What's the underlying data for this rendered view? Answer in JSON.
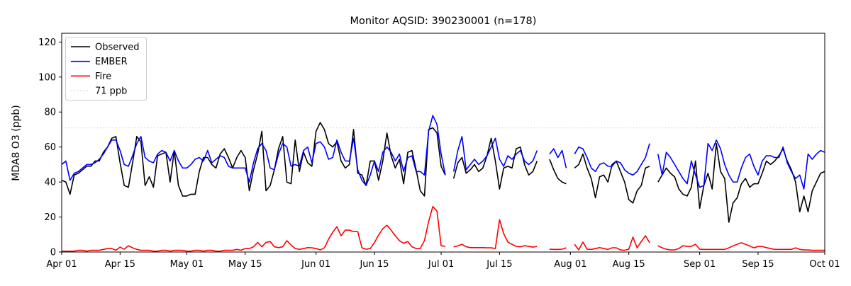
{
  "chart": {
    "title": "Monitor AQSID: 390230001 (n=178)",
    "ylabel": "MDA8 O3 (ppb)",
    "legend": [
      {
        "label": "Observed",
        "color": "#000000",
        "style": "solid"
      },
      {
        "label": "EMBER",
        "color": "#0000ff",
        "style": "solid"
      },
      {
        "label": "Fire",
        "color": "#ff0000",
        "style": "solid"
      },
      {
        "label": "71 ppb",
        "color": "#d9d9d9",
        "style": "dotted"
      }
    ]
  },
  "chart_data": {
    "type": "line",
    "title": "Monitor AQSID: 390230001 (n=178)",
    "xlabel": "",
    "ylabel": "MDA8 O3 (ppb)",
    "ylim": [
      0,
      125
    ],
    "yticks": [
      0,
      20,
      40,
      60,
      80,
      100,
      120
    ],
    "xlim_days": [
      0,
      183
    ],
    "xtick_labels": [
      "Apr 01",
      "Apr 15",
      "May 01",
      "May 15",
      "Jun 01",
      "Jun 15",
      "Jul 01",
      "Jul 15",
      "Aug 01",
      "Aug 15",
      "Sep 01",
      "Sep 15",
      "Oct 01"
    ],
    "xtick_days": [
      0,
      14,
      30,
      44,
      61,
      75,
      91,
      105,
      122,
      136,
      153,
      167,
      183
    ],
    "grid": false,
    "legend_position": "upper-left",
    "threshold": {
      "label": "71 ppb",
      "value": 71,
      "color": "#d9d9d9",
      "style": "dotted"
    },
    "series": [
      {
        "name": "Observed",
        "color": "#000000",
        "values": [
          41,
          40,
          33,
          44,
          45,
          47,
          49,
          49,
          52,
          52,
          57,
          60,
          65,
          66,
          51,
          38,
          37,
          51,
          66,
          63,
          38,
          43,
          37,
          55,
          56,
          57,
          40,
          58,
          38,
          32,
          32,
          33,
          33,
          46,
          54,
          54,
          50,
          48,
          56,
          59,
          54,
          48,
          54,
          58,
          54,
          35,
          47,
          56,
          69,
          35,
          38,
          47,
          59,
          66,
          40,
          39,
          64,
          46,
          57,
          51,
          49,
          69,
          74,
          70,
          62,
          60,
          63,
          52,
          48,
          50,
          70,
          45,
          44,
          38,
          52,
          52,
          41,
          52,
          68,
          55,
          48,
          53,
          39,
          57,
          58,
          47,
          35,
          32,
          70,
          71,
          68,
          49,
          44,
          null,
          42,
          51,
          54,
          45,
          47,
          50,
          46,
          48,
          55,
          65,
          52,
          36,
          48,
          49,
          48,
          59,
          60,
          50,
          44,
          46,
          52,
          null,
          null,
          53,
          47,
          42,
          40,
          39,
          null,
          48,
          50,
          56,
          48,
          42,
          31,
          43,
          44,
          40,
          50,
          52,
          46,
          40,
          30,
          28,
          35,
          38,
          48,
          49,
          null,
          40,
          44,
          48,
          45,
          43,
          36,
          33,
          32,
          37,
          52,
          25,
          38,
          45,
          36,
          62,
          46,
          42,
          17,
          28,
          31,
          39,
          42,
          37,
          39,
          39,
          45,
          52,
          50,
          52,
          55,
          59,
          52,
          47,
          40,
          23,
          32,
          23,
          35,
          40,
          45,
          46
        ]
      },
      {
        "name": "EMBER",
        "color": "#0000ff",
        "values": [
          50,
          52,
          41,
          45,
          46,
          48,
          50,
          50,
          51,
          53,
          56,
          60,
          64,
          64,
          58,
          50,
          49,
          55,
          62,
          66,
          54,
          52,
          51,
          56,
          58,
          57,
          52,
          58,
          52,
          48,
          48,
          50,
          53,
          54,
          52,
          58,
          51,
          53,
          55,
          54,
          49,
          48,
          48,
          48,
          48,
          40,
          51,
          59,
          62,
          58,
          48,
          47,
          56,
          62,
          60,
          49,
          50,
          49,
          58,
          60,
          51,
          62,
          63,
          60,
          53,
          54,
          64,
          57,
          52,
          52,
          65,
          47,
          41,
          38,
          44,
          52,
          46,
          57,
          60,
          57,
          52,
          56,
          46,
          54,
          55,
          46,
          46,
          44,
          69,
          78,
          73,
          56,
          44,
          null,
          46,
          58,
          66,
          47,
          50,
          53,
          50,
          52,
          55,
          60,
          65,
          53,
          49,
          55,
          53,
          56,
          58,
          52,
          50,
          52,
          58,
          null,
          null,
          56,
          59,
          54,
          58,
          48,
          null,
          56,
          60,
          59,
          54,
          48,
          46,
          50,
          51,
          49,
          49,
          52,
          51,
          47,
          45,
          44,
          46,
          50,
          54,
          62,
          null,
          56,
          44,
          57,
          54,
          50,
          46,
          42,
          39,
          52,
          44,
          37,
          38,
          62,
          58,
          64,
          59,
          50,
          44,
          40,
          40,
          48,
          54,
          56,
          49,
          44,
          52,
          55,
          55,
          54,
          54,
          60,
          51,
          46,
          42,
          44,
          36,
          56,
          53,
          56,
          58,
          57
        ]
      },
      {
        "name": "Fire",
        "color": "#ff0000",
        "values": [
          0.5,
          0.5,
          0.5,
          0.5,
          1,
          1,
          0.5,
          1,
          1,
          1,
          1.5,
          2,
          2,
          1,
          2.8,
          1.6,
          3.6,
          2.4,
          1.5,
          1,
          1,
          1,
          0.5,
          0.5,
          1,
          1,
          0.5,
          1,
          1,
          1,
          0.5,
          0.5,
          1,
          1,
          0.5,
          1,
          1,
          0.5,
          0.5,
          1,
          1,
          1,
          1.5,
          1,
          2,
          2,
          3,
          5.5,
          3,
          5.5,
          6,
          3,
          2.5,
          3,
          6.5,
          4,
          2,
          1.5,
          2,
          2.5,
          2.4,
          2,
          1.2,
          2.4,
          7.3,
          11.3,
          14.5,
          9.3,
          12.5,
          12.5,
          11.7,
          11.7,
          2.4,
          1.6,
          2,
          5.3,
          9.7,
          13.3,
          15.3,
          12.5,
          9.3,
          6.5,
          5,
          6,
          3,
          2,
          2,
          6.5,
          17.4,
          26,
          23.4,
          3.6,
          3.2,
          null,
          3,
          3.5,
          4.4,
          3,
          2.5,
          2.5,
          2.5,
          2.5,
          2.4,
          2.4,
          2,
          18.5,
          10.5,
          5.7,
          4.4,
          3.2,
          3,
          3.6,
          3.2,
          2.8,
          3.2,
          null,
          null,
          1.6,
          1.5,
          1.5,
          1.6,
          2.4,
          null,
          4.4,
          1.2,
          5.7,
          1.6,
          1.5,
          2,
          2.5,
          2,
          1.5,
          2.4,
          2.4,
          1.2,
          1,
          1.6,
          8.5,
          2.4,
          6,
          9.3,
          5.3,
          null,
          3.6,
          2.4,
          1.6,
          1.2,
          1.2,
          2,
          3.6,
          3.2,
          3.2,
          4.4,
          1.6,
          1.5,
          1.5,
          1.5,
          1.5,
          1.5,
          1.5,
          2.4,
          3.5,
          4.4,
          5.3,
          4.4,
          3.5,
          2.4,
          3.2,
          3.2,
          2.5,
          2,
          1.5,
          1.5,
          1.5,
          1.5,
          1.5,
          2.4,
          1.5,
          1.2,
          1.2,
          1,
          1,
          1,
          1
        ]
      }
    ]
  }
}
